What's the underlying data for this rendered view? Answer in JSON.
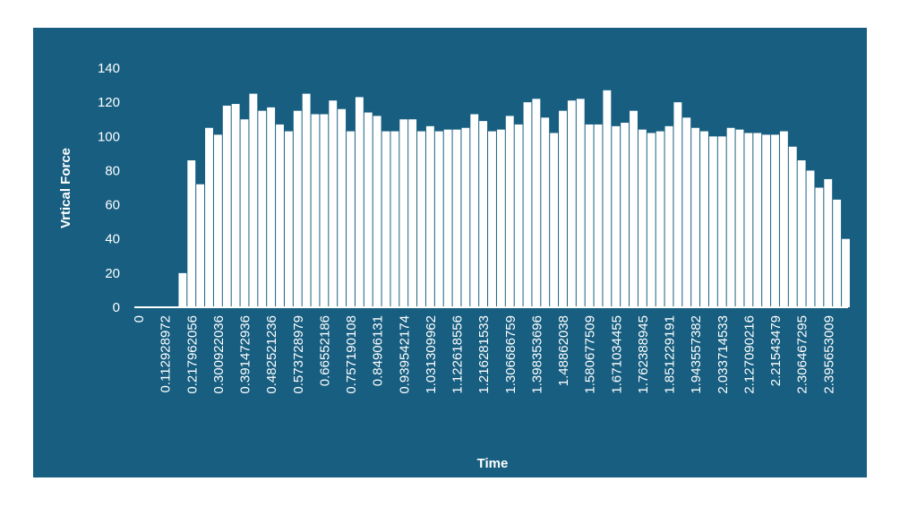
{
  "chart_data": {
    "type": "bar",
    "x_label": "Time",
    "y_label": "Vrtical Force",
    "categories": [
      "0",
      null,
      null,
      "0.112928972",
      null,
      null,
      "0.217962056",
      null,
      null,
      "0.300922036",
      null,
      null,
      "0.391472936",
      null,
      null,
      "0.482521236",
      null,
      null,
      "0.573728979",
      null,
      null,
      "0.66552186",
      null,
      null,
      "0.757190108",
      null,
      null,
      "0.84906131",
      null,
      null,
      "0.939542174",
      null,
      null,
      "1.031309962",
      null,
      null,
      "1.122618556",
      null,
      null,
      "1.216281533",
      null,
      null,
      "1.306686759",
      null,
      null,
      "1.398353696",
      null,
      null,
      "1.48862038",
      null,
      null,
      "1.580677509",
      null,
      null,
      "1.671034455",
      null,
      null,
      "1.762388945",
      null,
      null,
      "1.851229191",
      null,
      null,
      "1.943557382",
      null,
      null,
      "2.033714533",
      null,
      null,
      "2.127090216",
      null,
      null,
      "2.21543479",
      null,
      null,
      "2.306467295",
      null,
      null,
      "2.395653009",
      null,
      null
    ],
    "values": [
      0,
      0,
      0,
      0,
      0,
      20,
      86,
      72,
      105,
      101,
      118,
      119,
      110,
      125,
      115,
      117,
      107,
      103,
      115,
      125,
      113,
      113,
      121,
      116,
      103,
      123,
      114,
      112,
      103,
      103,
      110,
      110,
      103,
      106,
      103,
      104,
      104,
      105,
      113,
      109,
      103,
      104,
      112,
      107,
      120,
      122,
      111,
      102,
      115,
      121,
      122,
      107,
      107,
      127,
      106,
      108,
      115,
      104,
      102,
      103,
      106,
      120,
      111,
      105,
      103,
      100,
      100,
      105,
      104,
      102,
      102,
      101,
      101,
      103,
      94,
      86,
      80,
      70,
      75,
      63,
      40
    ],
    "color": "#ffffff",
    "background": "#175e80",
    "ylim": [
      0,
      140
    ],
    "yticks": [
      0,
      20,
      40,
      60,
      80,
      100,
      120,
      140
    ],
    "grid": false
  }
}
